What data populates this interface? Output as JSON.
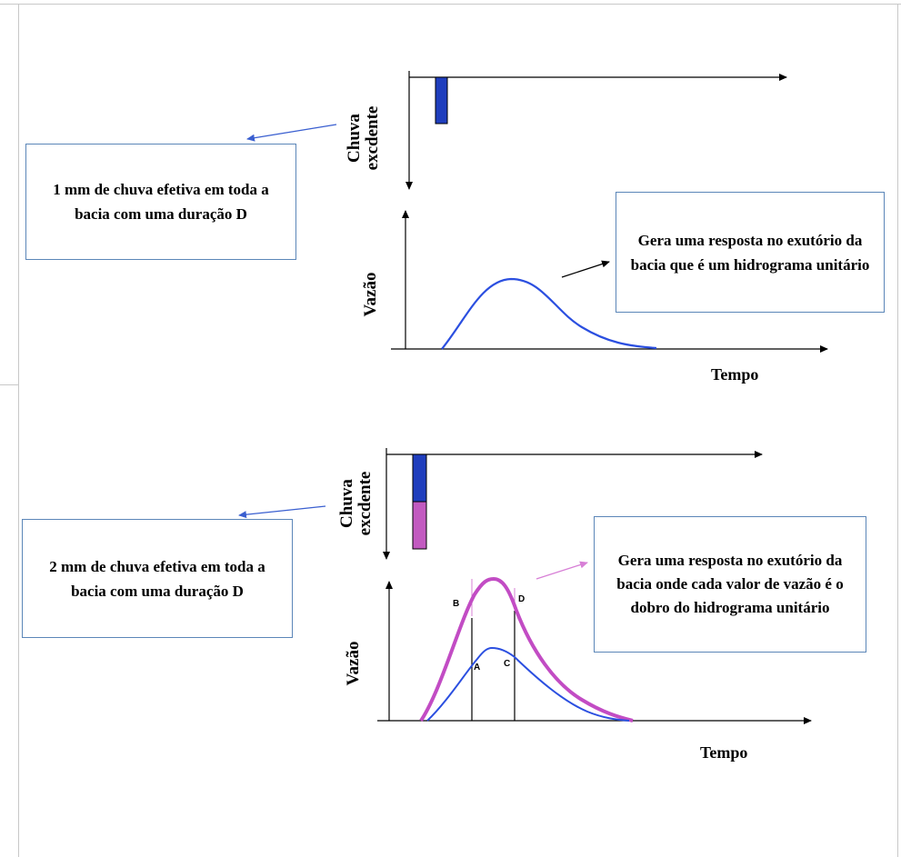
{
  "panel_top": {
    "rain_axis_label_line1": "Chuva",
    "rain_axis_label_line2": "excdente",
    "flow_axis_label": "Vazão",
    "time_axis_label": "Tempo",
    "left_box_text": "1 mm de chuva efetiva em toda a bacia com uma duração D",
    "right_box_text": "Gera uma resposta no exutório da bacia que é um hidrograma unitário"
  },
  "panel_bottom": {
    "rain_axis_label_line1": "Chuva",
    "rain_axis_label_line2": "excdente",
    "flow_axis_label": "Vazão",
    "time_axis_label": "Tempo",
    "left_box_text": "2 mm de chuva efetiva em toda a bacia com uma duração D",
    "right_box_text": "Gera uma resposta no exutório da bacia onde cada valor de vazão é o dobro do hidrograma unitário",
    "points": {
      "A": "A",
      "B": "B",
      "C": "C",
      "D": "D"
    }
  },
  "colors": {
    "rain_blue": "#1f3ebd",
    "rain_magenta": "#c25ac0",
    "curve_blue": "#2b4fe0",
    "curve_magenta": "#c24cc4",
    "box_border": "#5b86b8",
    "arrow_blue": "#3a5fd0",
    "arrow_magenta": "#d77fd6"
  }
}
